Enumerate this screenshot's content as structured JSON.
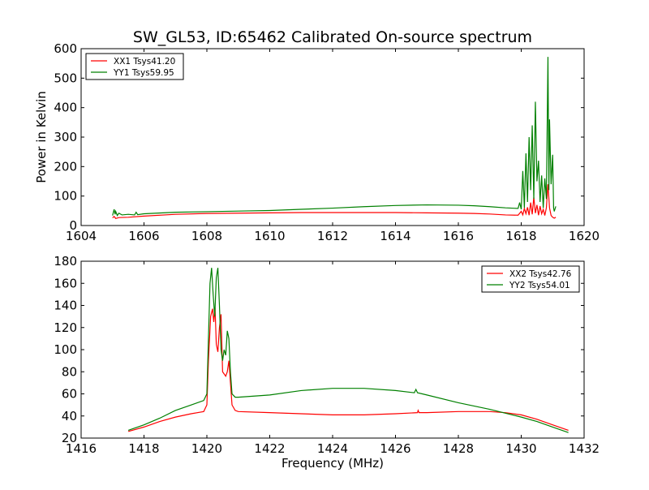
{
  "title": "SW_GL53, ID:65462 Calibrated On-source spectrum",
  "colors": {
    "xx": "#ff0000",
    "yy": "#008000",
    "axis": "#000000",
    "background": "#ffffff"
  },
  "chart_data": [
    {
      "type": "line",
      "title": "SW_GL53, ID:65462 Calibrated On-source spectrum",
      "xlabel": "",
      "ylabel": "Power in Kelvin",
      "xlim": [
        1604,
        1620
      ],
      "ylim": [
        0,
        600
      ],
      "xticks": [
        "1604",
        "1606",
        "1608",
        "1610",
        "1612",
        "1614",
        "1616",
        "1618",
        "1620"
      ],
      "yticks": [
        "0",
        "100",
        "200",
        "300",
        "400",
        "500",
        "600"
      ],
      "grid": false,
      "legend_position": "top-left",
      "series": [
        {
          "name": "XX1 Tsys41.20",
          "color": "#ff0000",
          "points": [
            [
              1605.0,
              26
            ],
            [
              1605.05,
              31
            ],
            [
              1605.1,
              24
            ],
            [
              1605.2,
              27
            ],
            [
              1605.5,
              28
            ],
            [
              1606,
              32
            ],
            [
              1607,
              38
            ],
            [
              1608,
              41
            ],
            [
              1609,
              42
            ],
            [
              1610,
              43
            ],
            [
              1611,
              44
            ],
            [
              1612,
              44
            ],
            [
              1613,
              44
            ],
            [
              1614,
              44
            ],
            [
              1615,
              43
            ],
            [
              1616,
              42
            ],
            [
              1616.5,
              41
            ],
            [
              1617,
              39
            ],
            [
              1617.5,
              36
            ],
            [
              1617.9,
              35
            ],
            [
              1618.0,
              48
            ],
            [
              1618.05,
              36
            ],
            [
              1618.1,
              58
            ],
            [
              1618.15,
              40
            ],
            [
              1618.2,
              62
            ],
            [
              1618.25,
              35
            ],
            [
              1618.3,
              78
            ],
            [
              1618.35,
              38
            ],
            [
              1618.4,
              96
            ],
            [
              1618.45,
              42
            ],
            [
              1618.5,
              70
            ],
            [
              1618.55,
              35
            ],
            [
              1618.6,
              66
            ],
            [
              1618.65,
              40
            ],
            [
              1618.7,
              55
            ],
            [
              1618.75,
              34
            ],
            [
              1618.8,
              60
            ],
            [
              1618.85,
              140
            ],
            [
              1618.9,
              60
            ],
            [
              1618.95,
              34
            ],
            [
              1619.0,
              28
            ],
            [
              1619.05,
              25
            ],
            [
              1619.1,
              28
            ]
          ]
        },
        {
          "name": "YY1 Tsys59.95",
          "color": "#008000",
          "points": [
            [
              1605.0,
              34
            ],
            [
              1605.05,
              55
            ],
            [
              1605.08,
              38
            ],
            [
              1605.1,
              48
            ],
            [
              1605.15,
              34
            ],
            [
              1605.2,
              42
            ],
            [
              1605.3,
              36
            ],
            [
              1605.5,
              38
            ],
            [
              1605.7,
              36
            ],
            [
              1605.75,
              45
            ],
            [
              1605.8,
              37
            ],
            [
              1606,
              40
            ],
            [
              1607,
              45
            ],
            [
              1608,
              47
            ],
            [
              1609,
              49
            ],
            [
              1610,
              51
            ],
            [
              1611,
              55
            ],
            [
              1612,
              59
            ],
            [
              1613,
              64
            ],
            [
              1614,
              68
            ],
            [
              1615,
              70
            ],
            [
              1616,
              69
            ],
            [
              1616.5,
              67
            ],
            [
              1617,
              64
            ],
            [
              1617.5,
              60
            ],
            [
              1617.9,
              58
            ],
            [
              1617.95,
              78
            ],
            [
              1618.0,
              55
            ],
            [
              1618.05,
              185
            ],
            [
              1618.1,
              60
            ],
            [
              1618.15,
              245
            ],
            [
              1618.2,
              80
            ],
            [
              1618.25,
              300
            ],
            [
              1618.3,
              120
            ],
            [
              1618.35,
              340
            ],
            [
              1618.4,
              90
            ],
            [
              1618.45,
              420
            ],
            [
              1618.5,
              150
            ],
            [
              1618.55,
              220
            ],
            [
              1618.6,
              80
            ],
            [
              1618.65,
              170
            ],
            [
              1618.7,
              60
            ],
            [
              1618.75,
              160
            ],
            [
              1618.8,
              90
            ],
            [
              1618.85,
              572
            ],
            [
              1618.88,
              120
            ],
            [
              1618.9,
              360
            ],
            [
              1618.95,
              140
            ],
            [
              1619.0,
              240
            ],
            [
              1619.03,
              60
            ],
            [
              1619.05,
              48
            ],
            [
              1619.1,
              65
            ]
          ]
        }
      ]
    },
    {
      "type": "line",
      "title": "",
      "xlabel": "Frequency (MHz)",
      "ylabel": "",
      "xlim": [
        1416,
        1432
      ],
      "ylim": [
        20,
        180
      ],
      "xticks": [
        "1416",
        "1418",
        "1420",
        "1422",
        "1424",
        "1426",
        "1428",
        "1430",
        "1432"
      ],
      "yticks": [
        "20",
        "40",
        "60",
        "80",
        "100",
        "120",
        "140",
        "160",
        "180"
      ],
      "grid": false,
      "legend_position": "top-right",
      "series": [
        {
          "name": "XX2 Tsys42.76",
          "color": "#ff0000",
          "points": [
            [
              1417.5,
              26
            ],
            [
              1418,
              30
            ],
            [
              1418.5,
              35
            ],
            [
              1419,
              39
            ],
            [
              1419.5,
              42
            ],
            [
              1419.9,
              44
            ],
            [
              1420.0,
              50
            ],
            [
              1420.05,
              90
            ],
            [
              1420.12,
              130
            ],
            [
              1420.18,
              137
            ],
            [
              1420.22,
              125
            ],
            [
              1420.26,
              138
            ],
            [
              1420.3,
              105
            ],
            [
              1420.35,
              98
            ],
            [
              1420.4,
              120
            ],
            [
              1420.45,
              132
            ],
            [
              1420.5,
              80
            ],
            [
              1420.55,
              78
            ],
            [
              1420.6,
              76
            ],
            [
              1420.65,
              80
            ],
            [
              1420.7,
              90
            ],
            [
              1420.75,
              70
            ],
            [
              1420.8,
              50
            ],
            [
              1420.9,
              45
            ],
            [
              1421,
              44
            ],
            [
              1422,
              43
            ],
            [
              1423,
              42
            ],
            [
              1424,
              41
            ],
            [
              1425,
              41
            ],
            [
              1426,
              42
            ],
            [
              1426.7,
              43
            ],
            [
              1426.72,
              45
            ],
            [
              1426.75,
              43
            ],
            [
              1427,
              43
            ],
            [
              1428,
              44
            ],
            [
              1429,
              44
            ],
            [
              1429.5,
              43
            ],
            [
              1430,
              41
            ],
            [
              1430.5,
              37
            ],
            [
              1431,
              32
            ],
            [
              1431.5,
              27
            ]
          ]
        },
        {
          "name": "YY2 Tsys54.01",
          "color": "#008000",
          "points": [
            [
              1417.5,
              27
            ],
            [
              1418,
              32
            ],
            [
              1418.5,
              38
            ],
            [
              1419,
              45
            ],
            [
              1419.5,
              50
            ],
            [
              1419.9,
              54
            ],
            [
              1420.0,
              60
            ],
            [
              1420.05,
              110
            ],
            [
              1420.1,
              160
            ],
            [
              1420.15,
              174
            ],
            [
              1420.2,
              150
            ],
            [
              1420.25,
              130
            ],
            [
              1420.3,
              165
            ],
            [
              1420.35,
              174
            ],
            [
              1420.4,
              140
            ],
            [
              1420.45,
              100
            ],
            [
              1420.5,
              90
            ],
            [
              1420.55,
              100
            ],
            [
              1420.6,
              95
            ],
            [
              1420.65,
              117
            ],
            [
              1420.7,
              110
            ],
            [
              1420.75,
              80
            ],
            [
              1420.8,
              60
            ],
            [
              1420.9,
              57
            ],
            [
              1421,
              57
            ],
            [
              1422,
              59
            ],
            [
              1423,
              63
            ],
            [
              1424,
              65
            ],
            [
              1425,
              65
            ],
            [
              1426,
              63
            ],
            [
              1426.6,
              61
            ],
            [
              1426.65,
              64
            ],
            [
              1426.7,
              61
            ],
            [
              1427,
              59
            ],
            [
              1428,
              52
            ],
            [
              1429,
              46
            ],
            [
              1430,
              39
            ],
            [
              1430.5,
              35
            ],
            [
              1431,
              30
            ],
            [
              1431.5,
              25
            ]
          ]
        }
      ]
    }
  ]
}
